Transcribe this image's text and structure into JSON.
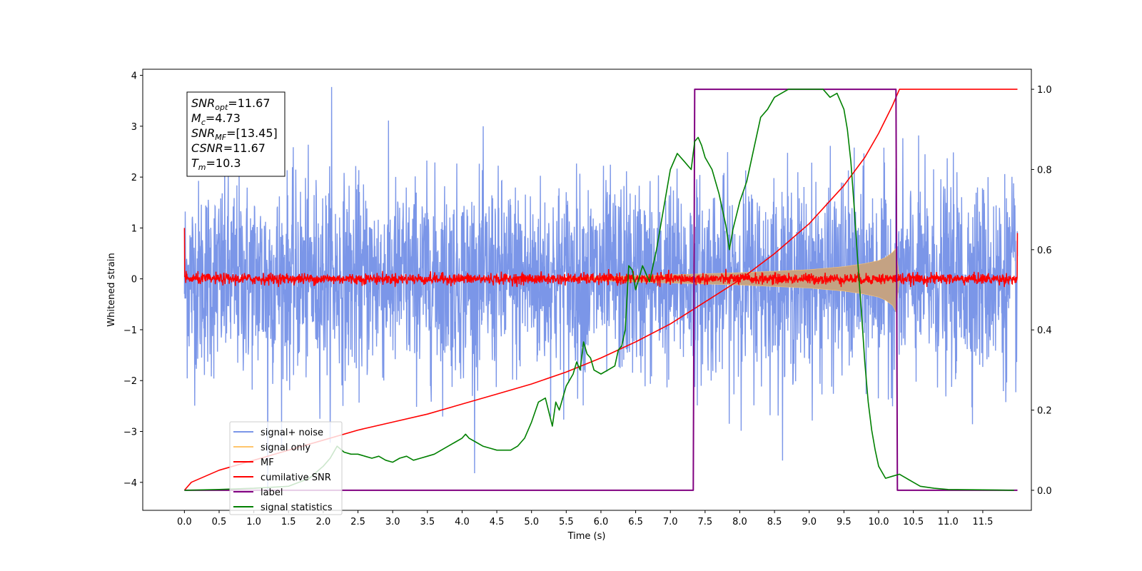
{
  "chart_data": {
    "type": "line",
    "xlabel": "Time (s)",
    "ylabel": "Whitened strain",
    "xlim": [
      -0.6,
      12.2
    ],
    "ylim": [
      -4.55,
      4.12
    ],
    "y2lim": [
      -0.05,
      1.05
    ],
    "x_ticks": [
      0.0,
      0.5,
      1.0,
      1.5,
      2.0,
      2.5,
      3.0,
      3.5,
      4.0,
      4.5,
      5.0,
      5.5,
      6.0,
      6.5,
      7.0,
      7.5,
      8.0,
      8.5,
      9.0,
      9.5,
      10.0,
      10.5,
      11.0,
      11.5
    ],
    "x_tick_labels": [
      "0.0",
      "0.5",
      "1.0",
      "1.5",
      "2.0",
      "2.5",
      "3.0",
      "3.5",
      "4.0",
      "4.5",
      "5.0",
      "5.5",
      "6.0",
      "6.5",
      "7.0",
      "7.5",
      "8.0",
      "8.5",
      "9.0",
      "9.5",
      "10.0",
      "10.5",
      "11.0",
      "11.5"
    ],
    "y_ticks": [
      -4,
      -3,
      -2,
      -1,
      0,
      1,
      2,
      3,
      4
    ],
    "y_tick_labels": [
      "−4",
      "−3",
      "−2",
      "−1",
      "0",
      "1",
      "2",
      "3",
      "4"
    ],
    "y2_ticks": [
      0.0,
      0.2,
      0.4,
      0.6,
      0.8,
      1.0
    ],
    "y2_tick_labels": [
      "0.0",
      "0.2",
      "0.4",
      "0.6",
      "0.8",
      "1.0"
    ],
    "grid": false,
    "legend_placement": "lower-left",
    "annotation": {
      "lines": [
        {
          "name": "SNR",
          "sub": "opt",
          "value": "=11.67"
        },
        {
          "name": "M",
          "sub": "c",
          "value": "=4.73"
        },
        {
          "name": "SNR",
          "sub": "MF",
          "value": "=[13.45]"
        },
        {
          "name": "CSNR",
          "sub": "",
          "value": "=11.67"
        },
        {
          "name": "T",
          "sub": "m",
          "value": "=10.3"
        }
      ]
    },
    "series": [
      {
        "name": "signal+ noise",
        "color": "#7b96e8",
        "axis": "left",
        "kind": "noise",
        "x_range": [
          0.0,
          12.0
        ],
        "amplitude_std": 0.95,
        "min_value": -4.15,
        "max_value": 3.77
      },
      {
        "name": "signal only",
        "color": "#ffc56b",
        "fill_color": "#c4a283",
        "axis": "left",
        "kind": "chirp-envelope",
        "x": [
          5.5,
          6.0,
          6.5,
          7.0,
          7.5,
          8.0,
          8.5,
          9.0,
          9.5,
          9.8,
          10.0,
          10.1,
          10.2,
          10.25,
          10.3
        ],
        "upper": [
          0.02,
          0.04,
          0.06,
          0.08,
          0.1,
          0.12,
          0.15,
          0.18,
          0.24,
          0.3,
          0.36,
          0.42,
          0.52,
          0.6,
          0.0
        ],
        "lower": [
          -0.02,
          -0.04,
          -0.06,
          -0.08,
          -0.1,
          -0.12,
          -0.15,
          -0.18,
          -0.24,
          -0.3,
          -0.36,
          -0.42,
          -0.52,
          -0.65,
          0.0
        ]
      },
      {
        "name": "MF",
        "color": "#ff0000",
        "axis": "left",
        "kind": "noise-band",
        "x_range": [
          0.0,
          12.0
        ],
        "baseline": 0.0,
        "band": 0.12,
        "start_value": 1.0,
        "end_value": 0.9
      },
      {
        "name": "cumilative SNR",
        "color": "#ff0000",
        "axis": "right",
        "x": [
          0.0,
          0.1,
          0.5,
          1.0,
          1.5,
          2.0,
          2.5,
          3.0,
          3.5,
          4.0,
          4.5,
          5.0,
          5.5,
          6.0,
          6.5,
          7.0,
          7.5,
          8.0,
          8.5,
          9.0,
          9.5,
          9.8,
          10.0,
          10.2,
          10.3,
          11.0,
          12.0
        ],
        "values": [
          0.0,
          0.02,
          0.05,
          0.075,
          0.1,
          0.125,
          0.15,
          0.17,
          0.19,
          0.215,
          0.24,
          0.265,
          0.295,
          0.33,
          0.37,
          0.415,
          0.47,
          0.525,
          0.59,
          0.665,
          0.76,
          0.83,
          0.89,
          0.96,
          1.0,
          1.0,
          1.0
        ]
      },
      {
        "name": "label",
        "color": "#800080",
        "axis": "right",
        "x": [
          0.0,
          7.33,
          7.35,
          10.25,
          10.27,
          12.0
        ],
        "values": [
          0.0,
          0.0,
          1.0,
          1.0,
          0.0,
          0.0
        ]
      },
      {
        "name": "signal statistics",
        "color": "#008000",
        "axis": "right",
        "x": [
          0.0,
          0.5,
          1.0,
          1.5,
          1.8,
          2.0,
          2.1,
          2.2,
          2.3,
          2.4,
          2.5,
          2.6,
          2.7,
          2.8,
          2.9,
          3.0,
          3.1,
          3.2,
          3.3,
          3.4,
          3.5,
          3.6,
          3.7,
          3.8,
          3.9,
          4.0,
          4.05,
          4.1,
          4.2,
          4.3,
          4.4,
          4.5,
          4.6,
          4.7,
          4.8,
          4.9,
          5.0,
          5.1,
          5.2,
          5.3,
          5.35,
          5.4,
          5.5,
          5.6,
          5.65,
          5.7,
          5.75,
          5.8,
          5.85,
          5.9,
          6.0,
          6.1,
          6.2,
          6.25,
          6.3,
          6.35,
          6.4,
          6.45,
          6.5,
          6.6,
          6.7,
          6.8,
          6.9,
          7.0,
          7.1,
          7.2,
          7.3,
          7.35,
          7.4,
          7.45,
          7.5,
          7.6,
          7.7,
          7.8,
          7.85,
          7.9,
          8.0,
          8.1,
          8.2,
          8.3,
          8.4,
          8.5,
          8.6,
          8.7,
          8.8,
          8.9,
          9.0,
          9.2,
          9.3,
          9.4,
          9.5,
          9.55,
          9.6,
          9.65,
          9.7,
          9.75,
          9.8,
          9.85,
          9.9,
          9.95,
          10.0,
          10.1,
          10.2,
          10.3,
          10.4,
          10.5,
          10.6,
          10.8,
          11.0,
          11.5,
          11.95
        ],
        "values": [
          0.0,
          0.002,
          0.005,
          0.01,
          0.03,
          0.06,
          0.08,
          0.11,
          0.095,
          0.09,
          0.09,
          0.085,
          0.08,
          0.085,
          0.075,
          0.07,
          0.08,
          0.085,
          0.075,
          0.08,
          0.085,
          0.09,
          0.1,
          0.11,
          0.12,
          0.13,
          0.14,
          0.13,
          0.12,
          0.11,
          0.105,
          0.1,
          0.1,
          0.1,
          0.11,
          0.13,
          0.17,
          0.22,
          0.23,
          0.16,
          0.22,
          0.2,
          0.26,
          0.29,
          0.32,
          0.3,
          0.37,
          0.34,
          0.33,
          0.3,
          0.29,
          0.3,
          0.31,
          0.35,
          0.36,
          0.4,
          0.56,
          0.55,
          0.5,
          0.56,
          0.52,
          0.6,
          0.7,
          0.8,
          0.84,
          0.82,
          0.8,
          0.87,
          0.88,
          0.86,
          0.83,
          0.8,
          0.74,
          0.66,
          0.6,
          0.65,
          0.72,
          0.77,
          0.85,
          0.93,
          0.95,
          0.98,
          0.99,
          1.0,
          1.0,
          1.0,
          1.0,
          1.0,
          0.98,
          0.99,
          0.95,
          0.9,
          0.82,
          0.7,
          0.57,
          0.45,
          0.32,
          0.22,
          0.15,
          0.1,
          0.06,
          0.03,
          0.035,
          0.04,
          0.03,
          0.02,
          0.01,
          0.005,
          0.002,
          0.001,
          0.0
        ]
      }
    ]
  }
}
